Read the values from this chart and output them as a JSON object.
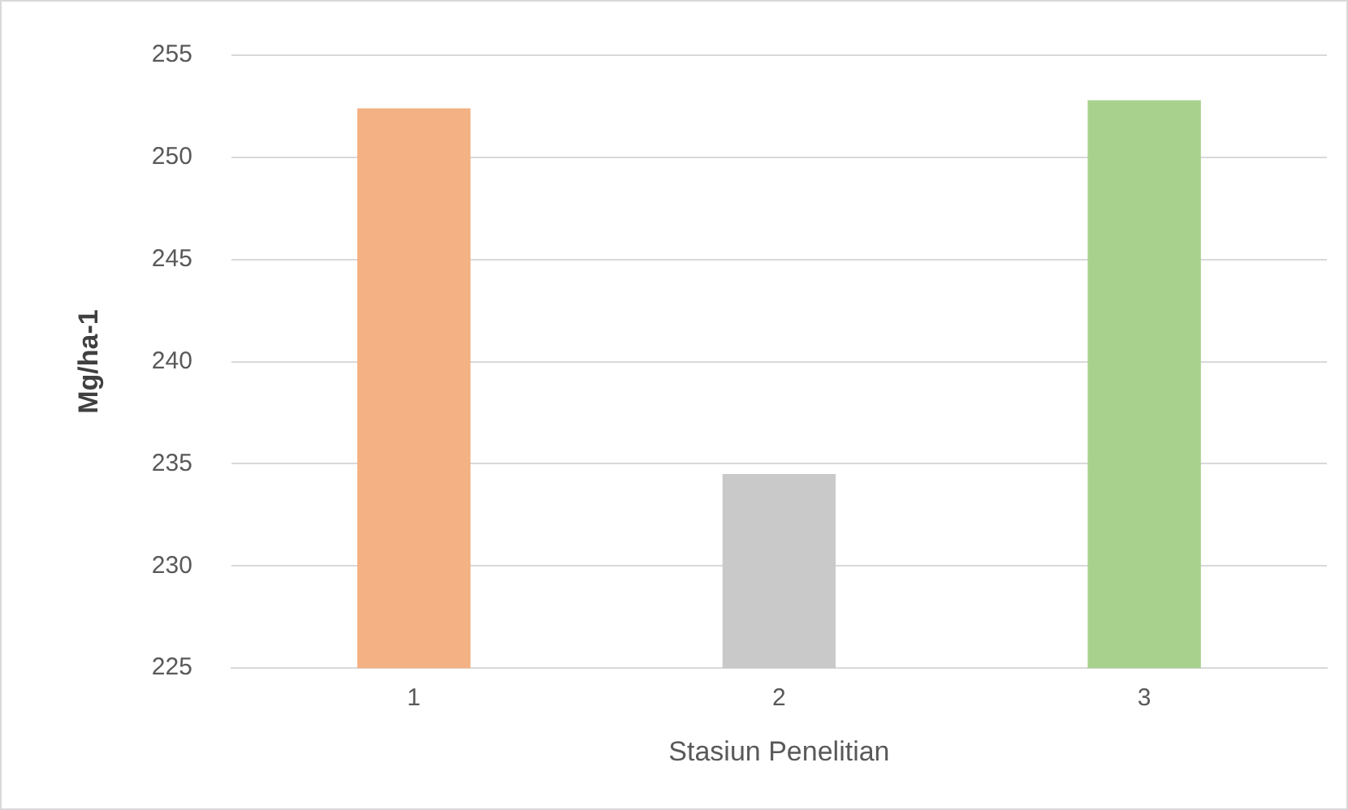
{
  "chart_data": {
    "type": "bar",
    "xlabel": "Stasiun Penelitian",
    "ylabel": "Mg/ha-1",
    "categories": [
      "1",
      "2",
      "3"
    ],
    "values": [
      252.4,
      234.5,
      252.8
    ],
    "colors": [
      "#f4b183",
      "#c9c9c9",
      "#a9d18e"
    ],
    "ylim": [
      225,
      255
    ],
    "yticks": [
      225,
      230,
      235,
      240,
      245,
      250,
      255
    ],
    "grid": "y",
    "legend": false
  }
}
